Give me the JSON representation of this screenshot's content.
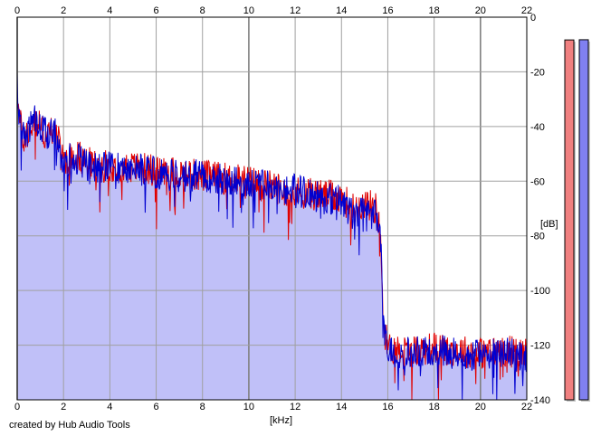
{
  "footer": {
    "credit": "created by Hub Audio Tools"
  },
  "chart_data": {
    "type": "line",
    "title": "",
    "xlabel": "[kHz]",
    "ylabel": "[dB]",
    "xlim": [
      0,
      22
    ],
    "ylim": [
      -140,
      0
    ],
    "x_ticks": [
      0,
      2,
      4,
      6,
      8,
      10,
      12,
      14,
      16,
      18,
      20,
      22
    ],
    "y_ticks": [
      0,
      -20,
      -40,
      -60,
      -80,
      -100,
      -120,
      -140
    ],
    "grid": true,
    "colors": {
      "fill": "#c0c0f8",
      "left_channel": "#e00000",
      "right_channel": "#0000d0",
      "left_meter": "#f08080",
      "right_meter": "#8080f0"
    },
    "series": [
      {
        "channel": "left",
        "color": "#e00000",
        "x": [
          0,
          0.1,
          0.3,
          0.5,
          0.8,
          1.0,
          1.3,
          1.6,
          1.8,
          2.0,
          2.5,
          3.0,
          3.5,
          4.0,
          5.0,
          6.0,
          7.0,
          8.0,
          9.0,
          10.0,
          11.0,
          12.0,
          13.0,
          14.0,
          14.5,
          15.0,
          15.5,
          15.7,
          15.8,
          16.0,
          17.0,
          18.0,
          19.0,
          20.0,
          21.0,
          22.0
        ],
        "y": [
          -26,
          -38,
          -45,
          -42,
          -38,
          -40,
          -44,
          -40,
          -46,
          -52,
          -50,
          -53,
          -55,
          -54,
          -55,
          -56,
          -57,
          -58,
          -59,
          -60,
          -62,
          -64,
          -65,
          -66,
          -70,
          -68,
          -70,
          -80,
          -112,
          -121,
          -122,
          -121,
          -122,
          -123,
          -122,
          -123
        ]
      },
      {
        "channel": "right",
        "color": "#0000d0",
        "x": [
          0,
          0.1,
          0.3,
          0.5,
          0.8,
          1.0,
          1.3,
          1.6,
          1.8,
          2.0,
          2.5,
          3.0,
          3.5,
          4.0,
          5.0,
          6.0,
          7.0,
          8.0,
          9.0,
          10.0,
          11.0,
          12.0,
          13.0,
          14.0,
          14.5,
          15.0,
          15.5,
          15.7,
          15.8,
          16.0,
          17.0,
          18.0,
          19.0,
          20.0,
          21.0,
          22.0
        ],
        "y": [
          -24,
          -40,
          -44,
          -41,
          -37,
          -41,
          -43,
          -39,
          -47,
          -53,
          -51,
          -54,
          -56,
          -55,
          -55,
          -57,
          -58,
          -58,
          -60,
          -61,
          -62,
          -63,
          -66,
          -67,
          -72,
          -69,
          -71,
          -82,
          -113,
          -122,
          -123,
          -122,
          -123,
          -124,
          -123,
          -124
        ]
      }
    ],
    "level_meters": [
      {
        "channel": "left",
        "level": -10
      },
      {
        "channel": "right",
        "level": -9
      }
    ]
  }
}
